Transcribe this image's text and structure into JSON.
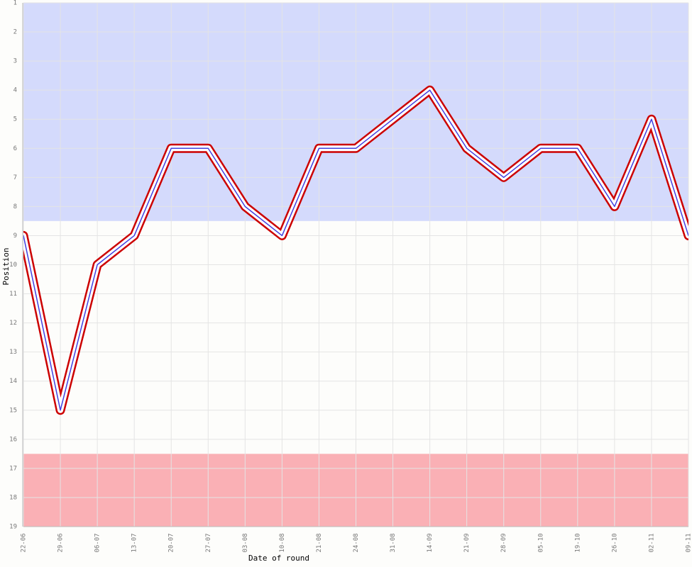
{
  "chart_data": {
    "type": "line",
    "x_label": "Date of round",
    "y_label": "Position",
    "categories": [
      "22-06",
      "29-06",
      "06-07",
      "13-07",
      "20-07",
      "27-07",
      "03-08",
      "10-08",
      "21-08",
      "24-08",
      "31-08",
      "14-09",
      "21-09",
      "28-09",
      "05-10",
      "19-10",
      "26-10",
      "02-11",
      "09-11"
    ],
    "series": [
      {
        "color": "#4040e0",
        "outline": "#cc0000",
        "values": [
          9,
          15,
          10,
          9,
          6,
          6,
          8,
          9,
          6,
          6,
          5,
          4,
          6,
          7,
          6,
          6,
          8,
          5,
          9
        ]
      }
    ],
    "ylim": [
      1,
      19
    ],
    "y_inverted": true,
    "yticks": [
      1,
      2,
      3,
      4,
      5,
      6,
      7,
      8,
      9,
      10,
      11,
      12,
      13,
      14,
      15,
      16,
      17,
      18,
      19
    ],
    "bands": [
      {
        "from": 1,
        "to": 8.5,
        "color": "#d4dafc"
      },
      {
        "from": 8.5,
        "to": 16.5,
        "color": "#fdfdfb"
      },
      {
        "from": 16.5,
        "to": 19,
        "color": "#fab0b5"
      }
    ],
    "grid": true
  }
}
